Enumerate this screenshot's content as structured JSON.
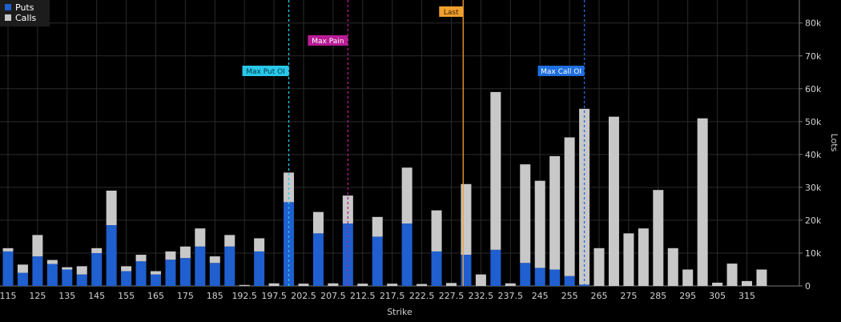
{
  "chart_data": {
    "type": "bar",
    "stacked": true,
    "xlabel": "Strike",
    "ylabel": "Lots",
    "ylim": [
      0,
      87000
    ],
    "y_ticks": [
      {
        "value": 0,
        "label": "0"
      },
      {
        "value": 10000,
        "label": "10k"
      },
      {
        "value": 20000,
        "label": "20k"
      },
      {
        "value": 30000,
        "label": "30k"
      },
      {
        "value": 40000,
        "label": "40k"
      },
      {
        "value": 50000,
        "label": "50k"
      },
      {
        "value": 60000,
        "label": "60k"
      },
      {
        "value": 70000,
        "label": "70k"
      },
      {
        "value": 80000,
        "label": "80k"
      }
    ],
    "grid": true,
    "legend_position": "top-left",
    "categories": [
      "115",
      "120",
      "125",
      "130",
      "135",
      "140",
      "145",
      "150",
      "155",
      "160",
      "165",
      "170",
      "175",
      "180",
      "185",
      "190",
      "192.5",
      "195",
      "197.5",
      "200",
      "202.5",
      "205",
      "207.5",
      "210",
      "212.5",
      "215",
      "217.5",
      "220",
      "222.5",
      "225",
      "227.5",
      "230",
      "232.5",
      "235",
      "237.5",
      "240",
      "245",
      "250",
      "255",
      "260",
      "265",
      "270",
      "275",
      "280",
      "285",
      "290",
      "295",
      "300",
      "305",
      "310",
      "315",
      "320"
    ],
    "x_tick_labels": [
      "115",
      "",
      "125",
      "",
      "135",
      "",
      "145",
      "",
      "155",
      "",
      "165",
      "",
      "175",
      "",
      "185",
      "",
      "192.5",
      "",
      "197.5",
      "",
      "202.5",
      "",
      "207.5",
      "",
      "212.5",
      "",
      "217.5",
      "",
      "222.5",
      "",
      "227.5",
      "",
      "232.5",
      "",
      "237.5",
      "",
      "245",
      "",
      "255",
      "",
      "265",
      "",
      "275",
      "",
      "285",
      "",
      "295",
      "",
      "305",
      "",
      "315",
      ""
    ],
    "series": [
      {
        "name": "Puts",
        "color": "#1f5fcf",
        "values": [
          10500,
          4000,
          9000,
          6700,
          5000,
          3500,
          10000,
          18500,
          4500,
          7500,
          3500,
          8000,
          8500,
          12000,
          7000,
          12000,
          0,
          10500,
          0,
          25500,
          0,
          16000,
          0,
          19000,
          0,
          15000,
          0,
          19000,
          0,
          10500,
          0,
          9500,
          0,
          11000,
          0,
          7000,
          5500,
          5000,
          3000,
          400,
          0,
          0,
          0,
          0,
          0,
          0,
          0,
          0,
          0,
          0,
          0,
          0
        ]
      },
      {
        "name": "Calls",
        "color": "#c8c8c8",
        "values": [
          1000,
          2500,
          6500,
          1200,
          700,
          2500,
          1500,
          10500,
          1500,
          2000,
          1000,
          2500,
          3500,
          5500,
          2000,
          3500,
          300,
          4000,
          800,
          9000,
          700,
          6500,
          800,
          8500,
          700,
          6000,
          700,
          17000,
          600,
          12500,
          900,
          21500,
          3500,
          48000,
          800,
          30000,
          26500,
          34500,
          42200,
          53500,
          11500,
          51500,
          16000,
          17500,
          29200,
          11500,
          5000,
          51000,
          1000,
          6800,
          1500,
          5000
        ]
      }
    ],
    "reference_lines": [
      {
        "label": "Max Put OI",
        "x": 200,
        "color": "#28c8e8",
        "text_color": "#003848",
        "style": "dashed"
      },
      {
        "label": "Max Pain",
        "x": 210,
        "color": "#b81c96",
        "text_color": "#ffffff",
        "style": "dashed"
      },
      {
        "label": "Last",
        "x": 229.5,
        "color": "#f0a030",
        "text_color": "#3a2000",
        "style": "solid"
      },
      {
        "label": "Max Call OI",
        "x": 260,
        "color": "#1e6fe0",
        "text_color": "#ffffff",
        "style": "dashed"
      }
    ]
  }
}
